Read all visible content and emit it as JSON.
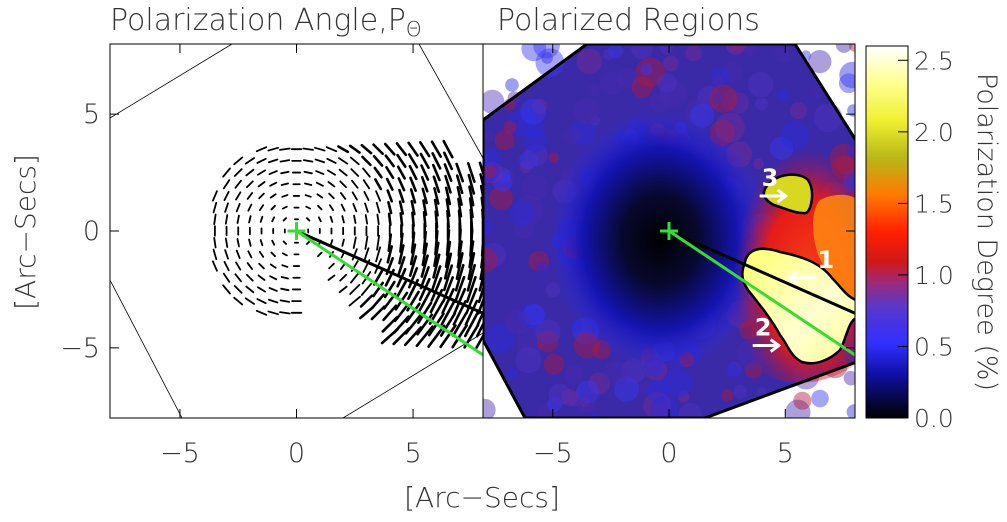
{
  "chart_data": [
    {
      "type": "scatter",
      "panel": "left",
      "title": "Polarization Angle,P",
      "title_subscript": "Θ",
      "xlabel": "[Arc−Secs]",
      "ylabel": "[Arc−Secs]",
      "xlim": [
        -8,
        8
      ],
      "ylim": [
        -8,
        8
      ],
      "xticks": [
        -5,
        0,
        5
      ],
      "yticks": [
        -5,
        0,
        5
      ],
      "xtick_labels": [
        "−5",
        "0",
        "5"
      ],
      "ytick_labels": [
        "−5",
        "0",
        "5"
      ],
      "center_marker": {
        "x": 0,
        "y": 0,
        "color": "#33dd33"
      },
      "lines": [
        {
          "x": [
            0,
            8.3
          ],
          "y": [
            0,
            -3.65
          ],
          "color": "#000000"
        },
        {
          "x": [
            0,
            8.3
          ],
          "y": [
            0,
            -5.5
          ],
          "color": "#33dd33"
        }
      ],
      "vector_field": "polarization angle vectors",
      "field_outline": "rotated square boundary",
      "grid": false,
      "legend": "none"
    },
    {
      "type": "heatmap",
      "panel": "right",
      "title": "Polarized Regions",
      "xlabel": "[Arc−Secs]",
      "xlim": [
        -8,
        8
      ],
      "ylim": [
        -8,
        8
      ],
      "xticks": [
        -5,
        0,
        5
      ],
      "xtick_labels": [
        "−5",
        "0",
        "5"
      ],
      "center_marker": {
        "x": 0,
        "y": 0,
        "color": "#33dd33"
      },
      "lines": [
        {
          "x": [
            0,
            8.3
          ],
          "y": [
            0,
            -3.65
          ],
          "color": "#000000"
        },
        {
          "x": [
            0,
            8.3
          ],
          "y": [
            0,
            -5.5
          ],
          "color": "#33dd33"
        }
      ],
      "annotations": [
        {
          "label": "1",
          "arrow_x": 6.3,
          "arrow_y": -2.0,
          "direction": "left"
        },
        {
          "label": "2",
          "arrow_x": 3.6,
          "arrow_y": -4.9,
          "direction": "right"
        },
        {
          "label": "3",
          "arrow_x": 3.9,
          "arrow_y": 1.5,
          "direction": "right"
        }
      ],
      "colorbar": {
        "label": "Polarization Degree (%)",
        "range": [
          0.0,
          2.6
        ],
        "ticks": [
          0.0,
          0.5,
          1.0,
          1.5,
          2.0,
          2.5
        ],
        "tick_labels": [
          "0.0",
          "0.5",
          "1.0",
          "1.5",
          "2.0",
          "2.5"
        ],
        "colors": [
          "#000000",
          "#1010a8",
          "#3030ff",
          "#6a3aa0",
          "#cc1010",
          "#ff2000",
          "#ff7a00",
          "#cccc10",
          "#ffff40",
          "#ffffff"
        ]
      },
      "grid": false,
      "legend": "none"
    }
  ]
}
